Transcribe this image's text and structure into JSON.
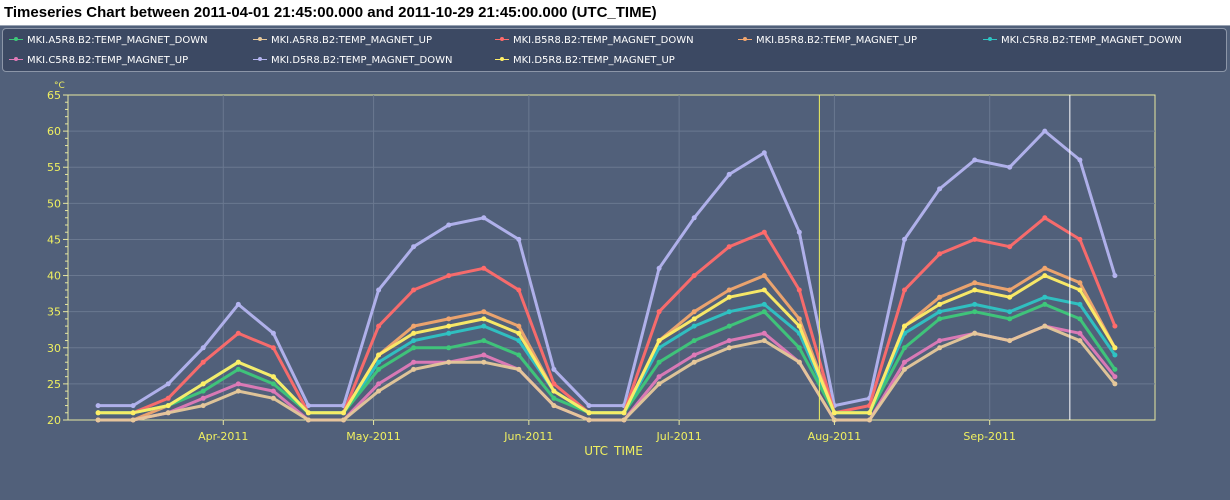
{
  "window": {
    "title": "Timeseries Chart between 2011-04-01 21:45:00.000 and 2011-10-29 21:45:00.000 (UTC_TIME)"
  },
  "legend": [
    {
      "label": "MKI.A5R8.B2:TEMP_MAGNET_DOWN",
      "color": "#3ec87a"
    },
    {
      "label": "MKI.A5R8.B2:TEMP_MAGNET_UP",
      "color": "#e6c89a"
    },
    {
      "label": "MKI.B5R8.B2:TEMP_MAGNET_DOWN",
      "color": "#ff6b6b"
    },
    {
      "label": "MKI.B5R8.B2:TEMP_MAGNET_UP",
      "color": "#f2a66e"
    },
    {
      "label": "MKI.C5R8.B2:TEMP_MAGNET_DOWN",
      "color": "#2ec4c4"
    },
    {
      "label": "MKI.C5R8.B2:TEMP_MAGNET_UP",
      "color": "#e07ab8"
    },
    {
      "label": "MKI.D5R8.B2:TEMP_MAGNET_DOWN",
      "color": "#b4b4f0"
    },
    {
      "label": "MKI.D5R8.B2:TEMP_MAGNET_UP",
      "color": "#ffee66"
    }
  ],
  "chart_data": {
    "type": "scatter",
    "title": "Timeseries Chart between 2011-04-01 21:45:00.000 and 2011-10-29 21:45:00.000 (UTC_TIME)",
    "xlabel": "UTC_TIME",
    "ylabel": "°C",
    "ylim": [
      20,
      65
    ],
    "y_ticks": [
      20,
      25,
      30,
      35,
      40,
      45,
      50,
      55,
      60,
      65
    ],
    "x_tick_labels": [
      "Apr-2011",
      "May-2011",
      "Jun-2011",
      "Jul-2011",
      "Aug-2011",
      "Sep-2011"
    ],
    "grid": true,
    "legend_position": "top",
    "x_dates": [
      "2011-03-07",
      "2011-03-14",
      "2011-03-21",
      "2011-03-28",
      "2011-04-04",
      "2011-04-11",
      "2011-04-18",
      "2011-04-25",
      "2011-05-02",
      "2011-05-09",
      "2011-05-16",
      "2011-05-23",
      "2011-05-30",
      "2011-06-06",
      "2011-06-13",
      "2011-06-20",
      "2011-06-27",
      "2011-07-04",
      "2011-07-11",
      "2011-07-18",
      "2011-07-25",
      "2011-08-01",
      "2011-08-08",
      "2011-08-15",
      "2011-08-22",
      "2011-08-29",
      "2011-09-05",
      "2011-09-12",
      "2011-09-19",
      "2011-09-26"
    ],
    "series": [
      {
        "name": "MKI.A5R8.B2:TEMP_MAGNET_DOWN",
        "color": "#3ec87a",
        "values": [
          21,
          21,
          22,
          24,
          27,
          25,
          21,
          21,
          27,
          30,
          30,
          31,
          29,
          23,
          21,
          21,
          28,
          31,
          33,
          35,
          30,
          21,
          21,
          30,
          34,
          35,
          34,
          36,
          34,
          27
        ]
      },
      {
        "name": "MKI.A5R8.B2:TEMP_MAGNET_UP",
        "color": "#e6c89a",
        "values": [
          20,
          20,
          21,
          22,
          24,
          23,
          20,
          20,
          24,
          27,
          28,
          28,
          27,
          22,
          20,
          20,
          25,
          28,
          30,
          31,
          28,
          20,
          20,
          27,
          30,
          32,
          31,
          33,
          31,
          25
        ]
      },
      {
        "name": "MKI.B5R8.B2:TEMP_MAGNET_DOWN",
        "color": "#ff6b6b",
        "values": [
          21,
          21,
          23,
          28,
          32,
          30,
          21,
          21,
          33,
          38,
          40,
          41,
          38,
          25,
          21,
          21,
          35,
          40,
          44,
          46,
          38,
          21,
          22,
          38,
          43,
          45,
          44,
          48,
          45,
          33
        ]
      },
      {
        "name": "MKI.B5R8.B2:TEMP_MAGNET_UP",
        "color": "#f2a66e",
        "values": [
          20,
          20,
          22,
          25,
          28,
          26,
          21,
          21,
          29,
          33,
          34,
          35,
          33,
          24,
          21,
          21,
          31,
          35,
          38,
          40,
          34,
          21,
          21,
          33,
          37,
          39,
          38,
          41,
          39,
          30
        ]
      },
      {
        "name": "MKI.C5R8.B2:TEMP_MAGNET_DOWN",
        "color": "#2ec4c4",
        "values": [
          21,
          21,
          22,
          25,
          28,
          26,
          21,
          21,
          28,
          31,
          32,
          33,
          31,
          24,
          21,
          21,
          30,
          33,
          35,
          36,
          32,
          21,
          21,
          32,
          35,
          36,
          35,
          37,
          36,
          29
        ]
      },
      {
        "name": "MKI.C5R8.B2:TEMP_MAGNET_UP",
        "color": "#e07ab8",
        "values": [
          20,
          20,
          21,
          23,
          25,
          24,
          20,
          20,
          25,
          28,
          28,
          29,
          27,
          22,
          20,
          20,
          26,
          29,
          31,
          32,
          28,
          20,
          20,
          28,
          31,
          32,
          31,
          33,
          32,
          26
        ]
      },
      {
        "name": "MKI.D5R8.B2:TEMP_MAGNET_DOWN",
        "color": "#b4b4f0",
        "values": [
          22,
          22,
          25,
          30,
          36,
          32,
          22,
          22,
          38,
          44,
          47,
          48,
          45,
          27,
          22,
          22,
          41,
          48,
          54,
          57,
          46,
          22,
          23,
          45,
          52,
          56,
          55,
          60,
          56,
          40
        ]
      },
      {
        "name": "MKI.D5R8.B2:TEMP_MAGNET_UP",
        "color": "#ffee66",
        "values": [
          21,
          21,
          22,
          25,
          28,
          26,
          21,
          21,
          29,
          32,
          33,
          34,
          32,
          24,
          21,
          21,
          31,
          34,
          37,
          38,
          33,
          21,
          21,
          33,
          36,
          38,
          37,
          40,
          38,
          30
        ]
      }
    ]
  }
}
